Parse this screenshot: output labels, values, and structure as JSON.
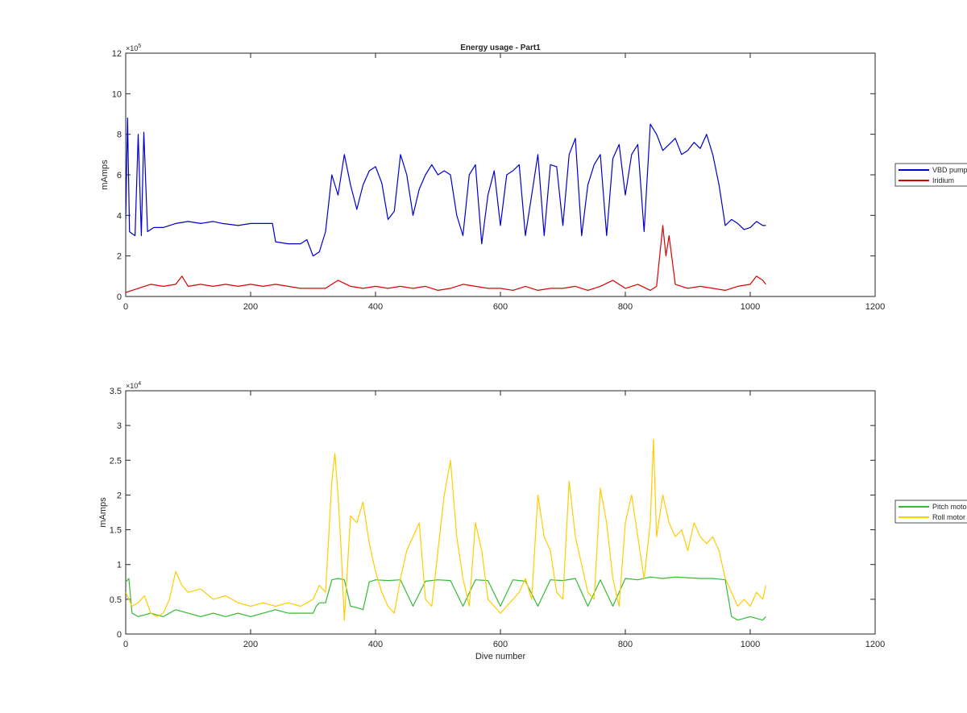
{
  "chart_data": [
    {
      "type": "line",
      "title": "Energy usage - Part1",
      "xlabel": "",
      "ylabel": "mAmps",
      "xlim": [
        0,
        1200
      ],
      "ylim": [
        0,
        1200000
      ],
      "xticks": [
        "0",
        "200",
        "400",
        "600",
        "800",
        "1000",
        "1200"
      ],
      "yticks": [
        "0",
        "2",
        "4",
        "6",
        "8",
        "10",
        "12"
      ],
      "y_exponent_base": "×10",
      "y_exponent_power": "5",
      "legend_position": "outside-right",
      "series": [
        {
          "name": "VBD pump",
          "color": "#0000cc",
          "x": [
            0,
            3,
            6,
            10,
            15,
            20,
            25,
            29,
            35,
            45,
            60,
            80,
            100,
            120,
            140,
            155,
            180,
            200,
            220,
            235,
            240,
            260,
            280,
            290,
            300,
            310,
            320,
            330,
            340,
            350,
            360,
            370,
            380,
            390,
            400,
            410,
            420,
            430,
            440,
            450,
            460,
            470,
            480,
            490,
            500,
            510,
            520,
            530,
            540,
            550,
            560,
            570,
            580,
            590,
            600,
            610,
            620,
            630,
            640,
            650,
            660,
            670,
            680,
            690,
            700,
            710,
            720,
            730,
            740,
            750,
            760,
            770,
            780,
            790,
            800,
            810,
            820,
            830,
            840,
            850,
            860,
            870,
            880,
            890,
            900,
            910,
            920,
            930,
            940,
            950,
            960,
            970,
            980,
            990,
            1000,
            1010,
            1020,
            1025
          ],
          "y": [
            380000,
            880000,
            320000,
            310000,
            300000,
            800000,
            300000,
            810000,
            320000,
            340000,
            340000,
            360000,
            370000,
            360000,
            370000,
            360000,
            350000,
            360000,
            360000,
            360000,
            270000,
            260000,
            260000,
            280000,
            200000,
            220000,
            320000,
            600000,
            500000,
            700000,
            550000,
            430000,
            550000,
            620000,
            640000,
            560000,
            380000,
            420000,
            700000,
            600000,
            400000,
            530000,
            600000,
            650000,
            600000,
            620000,
            600000,
            400000,
            300000,
            600000,
            650000,
            260000,
            500000,
            620000,
            350000,
            600000,
            620000,
            650000,
            300000,
            500000,
            700000,
            300000,
            650000,
            640000,
            350000,
            700000,
            780000,
            300000,
            550000,
            650000,
            700000,
            300000,
            680000,
            750000,
            500000,
            700000,
            750000,
            320000,
            850000,
            800000,
            720000,
            750000,
            780000,
            700000,
            720000,
            760000,
            730000,
            800000,
            700000,
            550000,
            350000,
            380000,
            360000,
            330000,
            340000,
            370000,
            350000,
            350000
          ]
        },
        {
          "name": "Iridium",
          "color": "#dd0000",
          "x": [
            0,
            20,
            40,
            60,
            80,
            90,
            100,
            120,
            140,
            160,
            180,
            200,
            220,
            240,
            260,
            280,
            300,
            320,
            330,
            340,
            360,
            380,
            400,
            420,
            440,
            460,
            480,
            500,
            520,
            540,
            560,
            580,
            600,
            620,
            640,
            660,
            680,
            700,
            720,
            740,
            760,
            780,
            800,
            820,
            840,
            850,
            860,
            865,
            870,
            880,
            900,
            920,
            940,
            960,
            980,
            1000,
            1010,
            1020,
            1025
          ],
          "y": [
            20000,
            40000,
            60000,
            50000,
            60000,
            100000,
            50000,
            60000,
            50000,
            60000,
            50000,
            60000,
            50000,
            60000,
            50000,
            40000,
            40000,
            40000,
            60000,
            80000,
            50000,
            40000,
            50000,
            40000,
            50000,
            40000,
            50000,
            30000,
            40000,
            60000,
            50000,
            40000,
            40000,
            30000,
            50000,
            30000,
            40000,
            40000,
            50000,
            30000,
            50000,
            80000,
            40000,
            60000,
            30000,
            50000,
            350000,
            200000,
            300000,
            60000,
            40000,
            50000,
            40000,
            30000,
            50000,
            60000,
            100000,
            80000,
            60000
          ]
        }
      ]
    },
    {
      "type": "line",
      "title": "",
      "xlabel": "Dive number",
      "ylabel": "mAmps",
      "xlim": [
        0,
        1200
      ],
      "ylim": [
        0,
        35000
      ],
      "xticks": [
        "0",
        "200",
        "400",
        "600",
        "800",
        "1000",
        "1200"
      ],
      "yticks": [
        "0",
        "0.5",
        "1",
        "1.5",
        "2",
        "2.5",
        "3",
        "3.5"
      ],
      "y_exponent_base": "×10",
      "y_exponent_power": "4",
      "legend_position": "outside-right",
      "series": [
        {
          "name": "Pitch motor",
          "color": "#33bb33",
          "x": [
            0,
            5,
            10,
            20,
            40,
            60,
            80,
            100,
            120,
            140,
            160,
            180,
            200,
            220,
            240,
            260,
            280,
            300,
            305,
            310,
            320,
            330,
            340,
            350,
            360,
            370,
            380,
            390,
            400,
            420,
            440,
            460,
            480,
            500,
            520,
            540,
            560,
            580,
            600,
            620,
            640,
            660,
            680,
            700,
            720,
            740,
            760,
            780,
            800,
            820,
            840,
            860,
            880,
            900,
            920,
            940,
            950,
            960,
            970,
            980,
            1000,
            1020,
            1025
          ],
          "y": [
            7500,
            8000,
            3000,
            2500,
            3000,
            2500,
            3500,
            3000,
            2500,
            3000,
            2500,
            3000,
            2500,
            3000,
            3500,
            3000,
            3000,
            3000,
            4000,
            4500,
            4500,
            7800,
            8000,
            7800,
            4000,
            3800,
            3500,
            7500,
            7800,
            7700,
            7800,
            4000,
            7600,
            7800,
            7700,
            4000,
            7800,
            7700,
            4000,
            7800,
            7600,
            4000,
            7800,
            7700,
            8000,
            4000,
            7800,
            4000,
            8000,
            7800,
            8200,
            8000,
            8200,
            8100,
            8000,
            8000,
            7900,
            7800,
            2500,
            2000,
            2500,
            2000,
            2500
          ]
        },
        {
          "name": "Roll motor",
          "color": "#ffcc00",
          "x": [
            0,
            5,
            10,
            20,
            30,
            40,
            50,
            60,
            70,
            80,
            90,
            100,
            120,
            140,
            160,
            180,
            200,
            220,
            240,
            260,
            280,
            300,
            310,
            320,
            330,
            335,
            340,
            345,
            350,
            360,
            370,
            380,
            390,
            400,
            410,
            420,
            430,
            440,
            450,
            460,
            470,
            480,
            490,
            500,
            510,
            520,
            530,
            540,
            550,
            560,
            570,
            580,
            590,
            600,
            610,
            620,
            630,
            640,
            650,
            660,
            670,
            680,
            690,
            700,
            710,
            720,
            730,
            740,
            750,
            760,
            770,
            780,
            790,
            800,
            810,
            820,
            830,
            840,
            845,
            850,
            860,
            870,
            880,
            890,
            900,
            910,
            920,
            930,
            940,
            950,
            960,
            970,
            980,
            990,
            1000,
            1010,
            1020,
            1025
          ],
          "y": [
            6000,
            5000,
            4000,
            4500,
            5500,
            3000,
            2500,
            3000,
            5000,
            9000,
            7000,
            6000,
            6500,
            5000,
            5500,
            4500,
            4000,
            4500,
            4000,
            4500,
            4000,
            5000,
            7000,
            6000,
            22000,
            26000,
            20000,
            12000,
            2000,
            17000,
            16000,
            19000,
            13000,
            9000,
            6000,
            4000,
            3000,
            8000,
            12000,
            14000,
            16000,
            5000,
            4000,
            12000,
            20000,
            25000,
            14000,
            8000,
            4000,
            16000,
            12000,
            5000,
            4000,
            3000,
            4000,
            5000,
            6000,
            8000,
            5000,
            20000,
            14000,
            12000,
            6000,
            5000,
            22000,
            14000,
            10000,
            6000,
            5000,
            21000,
            16000,
            8000,
            4000,
            16000,
            20000,
            14000,
            8000,
            16000,
            28000,
            14000,
            20000,
            16000,
            14000,
            15000,
            12000,
            16000,
            14000,
            13000,
            14000,
            12000,
            8000,
            6000,
            4000,
            5000,
            4000,
            6000,
            5000,
            7000
          ]
        }
      ]
    }
  ]
}
